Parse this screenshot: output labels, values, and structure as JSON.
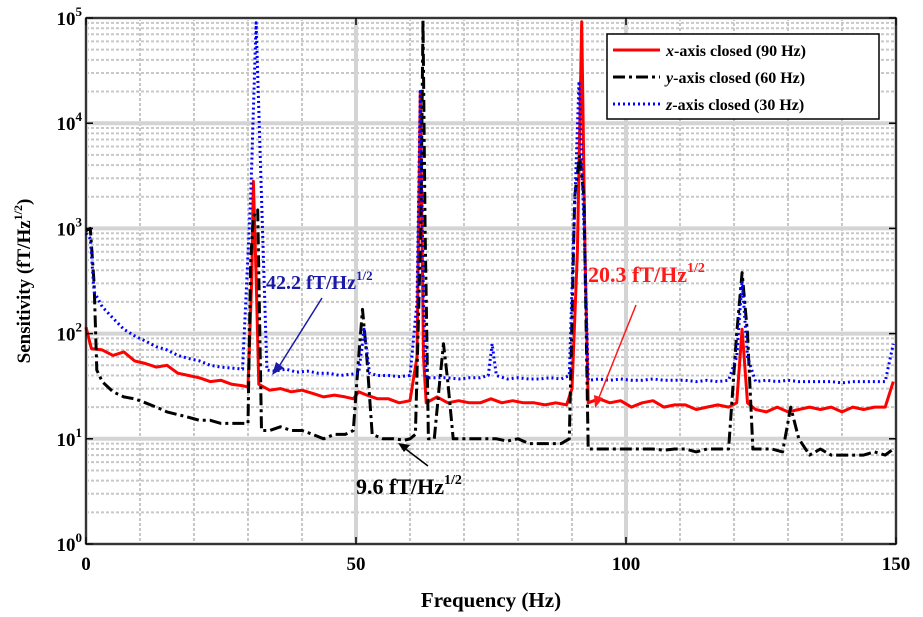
{
  "chart_data": {
    "type": "line",
    "xlabel": "Frequency (Hz)",
    "ylabel": "Sensitivity (fT/Hz",
    "ylabel_sup": "1/2",
    "ylabel_tail": ")",
    "xlim": [
      0,
      150
    ],
    "ylim": [
      1,
      100000
    ],
    "yscale": "log",
    "grid": true,
    "legend_position": "top-right",
    "xticks": [
      0,
      50,
      100,
      150
    ],
    "yticks": [
      {
        "value": 1,
        "base": "10",
        "exp": "0"
      },
      {
        "value": 10,
        "base": "10",
        "exp": "1"
      },
      {
        "value": 100,
        "base": "10",
        "exp": "2"
      },
      {
        "value": 1000,
        "base": "10",
        "exp": "3"
      },
      {
        "value": 10000,
        "base": "10",
        "exp": "4"
      },
      {
        "value": 100000,
        "base": "10",
        "exp": "5"
      }
    ],
    "series": [
      {
        "name_axis": "x",
        "name_rest": "-axis closed (90 Hz)",
        "color": "#ff0000",
        "style": "solid",
        "points": [
          [
            0,
            115
          ],
          [
            1,
            72
          ],
          [
            3,
            70
          ],
          [
            5,
            62
          ],
          [
            7,
            67
          ],
          [
            9,
            55
          ],
          [
            11,
            52
          ],
          [
            13,
            48
          ],
          [
            15,
            50
          ],
          [
            17,
            42
          ],
          [
            19,
            40
          ],
          [
            21,
            38
          ],
          [
            23,
            35
          ],
          [
            25,
            36
          ],
          [
            27,
            33
          ],
          [
            29,
            32
          ],
          [
            30,
            31
          ],
          [
            30.7,
            350
          ],
          [
            31,
            2800
          ],
          [
            31.5,
            350
          ],
          [
            32,
            33
          ],
          [
            34,
            29
          ],
          [
            36,
            30
          ],
          [
            38,
            28
          ],
          [
            40,
            29
          ],
          [
            42,
            27
          ],
          [
            44,
            25
          ],
          [
            46,
            26
          ],
          [
            48,
            25
          ],
          [
            49.5,
            24
          ],
          [
            50.5,
            28
          ],
          [
            52,
            26
          ],
          [
            54,
            24
          ],
          [
            56,
            24
          ],
          [
            58,
            22
          ],
          [
            60,
            23
          ],
          [
            61.3,
            60
          ],
          [
            61.9,
            20000
          ],
          [
            62.5,
            60
          ],
          [
            63,
            22
          ],
          [
            65,
            25
          ],
          [
            67,
            22
          ],
          [
            69,
            23
          ],
          [
            71,
            22
          ],
          [
            73,
            22
          ],
          [
            75,
            24
          ],
          [
            77,
            22
          ],
          [
            79,
            23
          ],
          [
            81,
            22
          ],
          [
            83,
            22
          ],
          [
            85,
            21
          ],
          [
            87,
            22
          ],
          [
            89,
            21
          ],
          [
            90,
            30
          ],
          [
            91,
            600
          ],
          [
            91.8,
            92000
          ],
          [
            92.4,
            600
          ],
          [
            93,
            22
          ],
          [
            95,
            24
          ],
          [
            97,
            22
          ],
          [
            99,
            23
          ],
          [
            101,
            20
          ],
          [
            103,
            22
          ],
          [
            105,
            23
          ],
          [
            107,
            20
          ],
          [
            109,
            21
          ],
          [
            111,
            21
          ],
          [
            113,
            19
          ],
          [
            115,
            20
          ],
          [
            117,
            21
          ],
          [
            119,
            20
          ],
          [
            120.5,
            22
          ],
          [
            121.5,
            110
          ],
          [
            122.5,
            22
          ],
          [
            124,
            19
          ],
          [
            126,
            18
          ],
          [
            128,
            20
          ],
          [
            130,
            18
          ],
          [
            132,
            19
          ],
          [
            134,
            20
          ],
          [
            136,
            19
          ],
          [
            138,
            20
          ],
          [
            140,
            18
          ],
          [
            142,
            20
          ],
          [
            144,
            19
          ],
          [
            146,
            20
          ],
          [
            148,
            20
          ],
          [
            149.5,
            35
          ]
        ]
      },
      {
        "name_axis": "y",
        "name_rest": "-axis closed (60 Hz)",
        "color": "#000000",
        "style": "dashdot",
        "points": [
          [
            0,
            950
          ],
          [
            0.8,
            1000
          ],
          [
            1.5,
            300
          ],
          [
            2,
            45
          ],
          [
            3,
            35
          ],
          [
            5,
            28
          ],
          [
            7,
            25
          ],
          [
            9,
            24
          ],
          [
            11,
            22
          ],
          [
            13,
            20
          ],
          [
            15,
            18
          ],
          [
            17,
            17
          ],
          [
            19,
            16
          ],
          [
            21,
            15
          ],
          [
            23,
            15
          ],
          [
            25,
            14
          ],
          [
            27,
            14
          ],
          [
            29,
            14
          ],
          [
            30,
            14
          ],
          [
            30.5,
            500
          ],
          [
            31,
            1300
          ],
          [
            31.8,
            1500
          ],
          [
            32.5,
            12
          ],
          [
            34,
            12
          ],
          [
            36,
            13
          ],
          [
            38,
            12
          ],
          [
            40,
            12
          ],
          [
            42,
            11
          ],
          [
            44,
            10
          ],
          [
            46,
            11
          ],
          [
            48,
            11
          ],
          [
            49.5,
            12
          ],
          [
            50.5,
            60
          ],
          [
            51.2,
            170
          ],
          [
            52,
            60
          ],
          [
            53,
            11
          ],
          [
            55,
            10
          ],
          [
            57,
            10
          ],
          [
            59,
            9.7
          ],
          [
            60,
            10
          ],
          [
            61,
            11
          ],
          [
            62,
            1000
          ],
          [
            62.4,
            95000
          ],
          [
            62.8,
            1000
          ],
          [
            63.4,
            10
          ],
          [
            64.5,
            10
          ],
          [
            65.5,
            35
          ],
          [
            66.2,
            80
          ],
          [
            67,
            35
          ],
          [
            68,
            10
          ],
          [
            70,
            10
          ],
          [
            72,
            10
          ],
          [
            74,
            10
          ],
          [
            76,
            10
          ],
          [
            78,
            9.5
          ],
          [
            80,
            10
          ],
          [
            82,
            9
          ],
          [
            84,
            9
          ],
          [
            86,
            9
          ],
          [
            88,
            9
          ],
          [
            89.5,
            10
          ],
          [
            90.5,
            2000
          ],
          [
            91.4,
            5000
          ],
          [
            92.2,
            2000
          ],
          [
            93,
            8
          ],
          [
            95,
            8
          ],
          [
            97,
            8
          ],
          [
            99,
            8
          ],
          [
            101,
            8
          ],
          [
            103,
            8
          ],
          [
            105,
            8
          ],
          [
            107,
            7.8
          ],
          [
            109,
            8
          ],
          [
            111,
            8
          ],
          [
            113,
            7.5
          ],
          [
            115,
            8
          ],
          [
            117,
            8
          ],
          [
            119,
            8
          ],
          [
            120.5,
            100
          ],
          [
            121.5,
            380
          ],
          [
            122.5,
            100
          ],
          [
            123.5,
            8
          ],
          [
            125,
            8
          ],
          [
            127,
            8
          ],
          [
            129,
            7.5
          ],
          [
            130.5,
            20
          ],
          [
            132,
            10
          ],
          [
            134,
            7
          ],
          [
            136,
            8
          ],
          [
            138,
            7
          ],
          [
            140,
            7
          ],
          [
            142,
            7
          ],
          [
            144,
            7
          ],
          [
            146,
            7.5
          ],
          [
            148,
            7
          ],
          [
            149.5,
            8
          ]
        ]
      },
      {
        "name_axis": "z",
        "name_rest": "-axis closed (30 Hz)",
        "color": "#0000ff",
        "style": "dotted",
        "points": [
          [
            0,
            900
          ],
          [
            0.8,
            800
          ],
          [
            1.5,
            250
          ],
          [
            3,
            180
          ],
          [
            5,
            140
          ],
          [
            7,
            110
          ],
          [
            9,
            95
          ],
          [
            11,
            85
          ],
          [
            13,
            75
          ],
          [
            15,
            70
          ],
          [
            17,
            62
          ],
          [
            19,
            58
          ],
          [
            21,
            55
          ],
          [
            23,
            50
          ],
          [
            25,
            48
          ],
          [
            27,
            47
          ],
          [
            29,
            46
          ],
          [
            30.5,
            2000
          ],
          [
            31.5,
            90000
          ],
          [
            32.5,
            2000
          ],
          [
            33.5,
            45
          ],
          [
            35,
            44
          ],
          [
            37,
            46
          ],
          [
            39,
            43
          ],
          [
            41,
            44
          ],
          [
            43,
            42
          ],
          [
            45,
            42
          ],
          [
            47,
            40
          ],
          [
            49,
            41
          ],
          [
            50.5,
            42
          ],
          [
            51.5,
            110
          ],
          [
            52.5,
            42
          ],
          [
            54,
            40
          ],
          [
            56,
            40
          ],
          [
            58,
            39
          ],
          [
            60,
            40
          ],
          [
            61.3,
            200
          ],
          [
            61.9,
            20000
          ],
          [
            62.5,
            200
          ],
          [
            63,
            38
          ],
          [
            65,
            38
          ],
          [
            67,
            38
          ],
          [
            69,
            37
          ],
          [
            71,
            38
          ],
          [
            73,
            38
          ],
          [
            74.5,
            40
          ],
          [
            75.2,
            80
          ],
          [
            76,
            40
          ],
          [
            78,
            37
          ],
          [
            80,
            38
          ],
          [
            82,
            37
          ],
          [
            84,
            37
          ],
          [
            86,
            38
          ],
          [
            88,
            37
          ],
          [
            89.5,
            40
          ],
          [
            90.3,
            800
          ],
          [
            91.3,
            25000
          ],
          [
            92.3,
            800
          ],
          [
            93,
            36
          ],
          [
            95,
            37
          ],
          [
            97,
            36
          ],
          [
            99,
            37
          ],
          [
            101,
            36
          ],
          [
            103,
            36
          ],
          [
            105,
            37
          ],
          [
            107,
            36
          ],
          [
            109,
            36
          ],
          [
            111,
            36
          ],
          [
            113,
            35
          ],
          [
            115,
            36
          ],
          [
            117,
            35
          ],
          [
            119,
            36
          ],
          [
            120.5,
            60
          ],
          [
            121.5,
            320
          ],
          [
            122.5,
            60
          ],
          [
            124,
            35
          ],
          [
            126,
            36
          ],
          [
            128,
            35
          ],
          [
            130,
            36
          ],
          [
            132,
            35
          ],
          [
            134,
            35
          ],
          [
            136,
            35
          ],
          [
            138,
            35
          ],
          [
            140,
            34
          ],
          [
            142,
            35
          ],
          [
            144,
            35
          ],
          [
            146,
            35
          ],
          [
            148,
            35
          ],
          [
            149.5,
            80
          ]
        ]
      }
    ],
    "annotations": [
      {
        "text": "42.2 fT/Hz",
        "sup": "1/2",
        "color": "#1a1aa6",
        "arrow_to": [
          35,
          42.2
        ]
      },
      {
        "text": "20.3 fT/Hz",
        "sup": "1/2",
        "color": "#ff1a1a",
        "arrow_to": [
          94,
          20.3
        ]
      },
      {
        "text": "9.6 fT/Hz",
        "sup": "1/2",
        "color": "#000000",
        "arrow_to": [
          58.5,
          9.6
        ]
      }
    ]
  }
}
